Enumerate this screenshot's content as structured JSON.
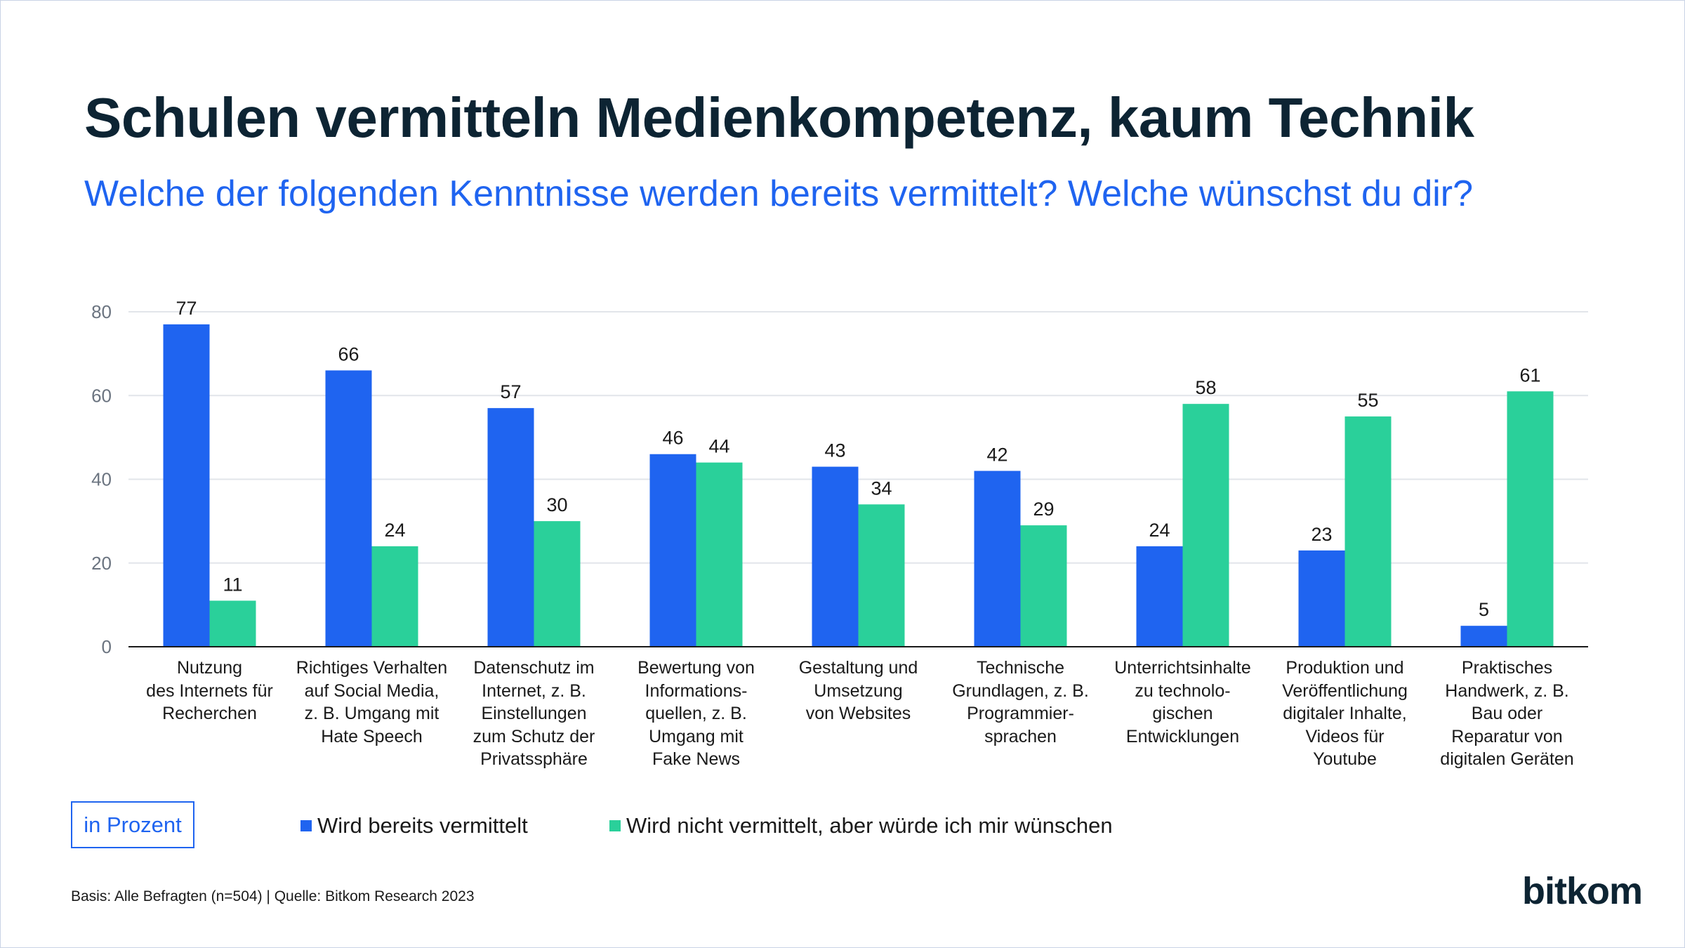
{
  "header": {
    "title": "Schulen vermitteln Medienkompetenz, kaum Technik",
    "subtitle": "Welche der folgenden Kenntnisse werden bereits vermittelt? Welche wünschst du dir?"
  },
  "unit_label": "in Prozent",
  "footer": {
    "source": "Basis: Alle Befragten (n=504) | Quelle: Bitkom Research 2023",
    "logo_text": "bitkom"
  },
  "colors": {
    "series_1": "#1f64f0",
    "series_2": "#2ad09a",
    "title": "#0d2433",
    "subtitle": "#1f64f0"
  },
  "chart_data": {
    "type": "bar",
    "categories": [
      [
        "Nutzung",
        "des Internets für",
        "Recherchen"
      ],
      [
        "Richtiges Verhalten",
        "auf Social Media,",
        "z. B. Umgang mit",
        "Hate Speech"
      ],
      [
        "Datenschutz im",
        "Internet, z. B.",
        "Einstellungen",
        "zum Schutz der",
        "Privatssphäre"
      ],
      [
        "Bewertung von",
        "Informations-",
        "quellen, z. B.",
        "Umgang  mit",
        "Fake News"
      ],
      [
        "Gestaltung und",
        "Umsetzung",
        "von Websites"
      ],
      [
        "Technische",
        "Grundlagen, z. B.",
        "Programmier-",
        "sprachen"
      ],
      [
        "Unterrichtsinhalte",
        "zu technolo-",
        "gischen",
        "Entwicklungen"
      ],
      [
        "Produktion und",
        "Veröffentlichung",
        "digitaler Inhalte,",
        "Videos für",
        "Youtube"
      ],
      [
        "Praktisches",
        "Handwerk, z. B.",
        "Bau oder",
        "Reparatur von",
        "digitalen Geräten"
      ]
    ],
    "series": [
      {
        "name": "Wird bereits vermittelt",
        "values": [
          77,
          66,
          57,
          46,
          43,
          42,
          24,
          23,
          5
        ]
      },
      {
        "name": "Wird nicht vermittelt, aber würde ich mir wünschen",
        "values": [
          11,
          24,
          30,
          44,
          34,
          29,
          58,
          55,
          61
        ]
      }
    ],
    "ylim": [
      0,
      80
    ],
    "yticks": [
      0,
      20,
      40,
      60,
      80
    ],
    "grid": true,
    "legend_position": "bottom"
  }
}
